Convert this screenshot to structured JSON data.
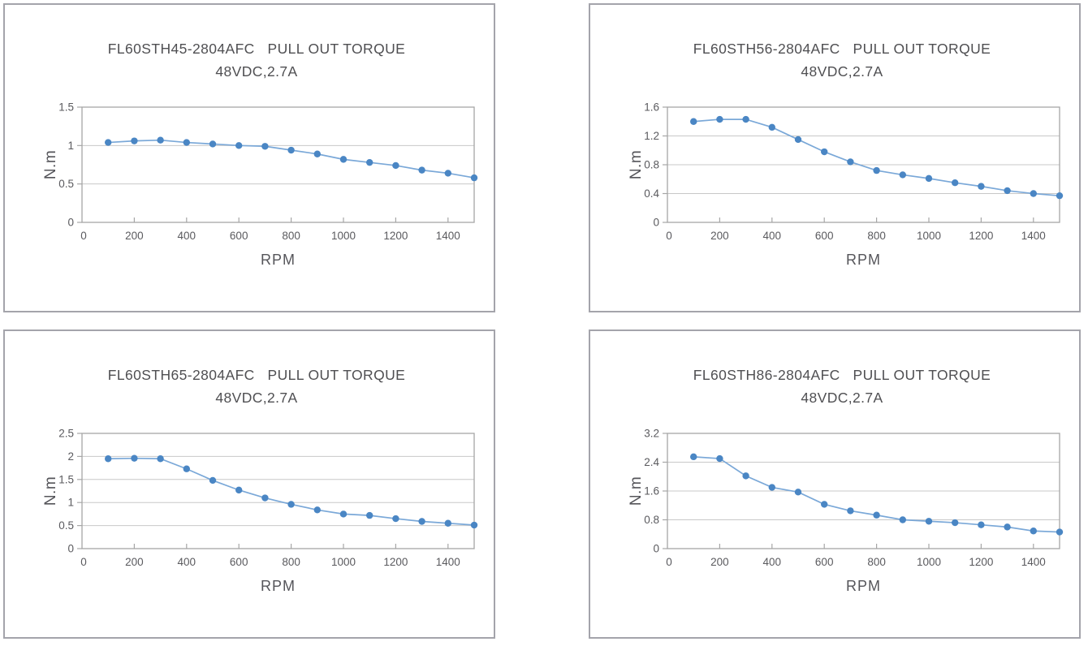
{
  "colors": {
    "line": "#7aa8d8",
    "marker": "#4a86c4",
    "grid": "#c8c8c8",
    "plot_border": "#a6a6a6",
    "tick": "#a6a6a6",
    "box_border": "#a4a4ab",
    "text": "#4f4f52"
  },
  "chart_data": [
    {
      "type": "line",
      "title_line1": "FL60STH45-2804AFC   PULL OUT TORQUE",
      "title_line2": "48VDC,2.7A",
      "xlabel": "RPM",
      "ylabel": "N.m",
      "legend_position": "none",
      "grid": true,
      "xlim": [
        0,
        1500
      ],
      "ylim": [
        0,
        1.5
      ],
      "xticks": [
        0,
        200,
        400,
        600,
        800,
        1000,
        1200,
        1400
      ],
      "xtick_labels": [
        "0",
        "200",
        "400",
        "600",
        "800",
        "1000",
        "1200",
        "1400"
      ],
      "yticks": [
        0,
        0.5,
        1,
        1.5
      ],
      "ytick_labels": [
        "0",
        "0.5",
        "1",
        "1.5"
      ],
      "x": [
        100,
        200,
        300,
        400,
        500,
        600,
        700,
        800,
        900,
        1000,
        1100,
        1200,
        1300,
        1400,
        1500
      ],
      "values": [
        1.04,
        1.06,
        1.07,
        1.04,
        1.02,
        1.0,
        0.99,
        0.94,
        0.89,
        0.82,
        0.78,
        0.74,
        0.68,
        0.64,
        0.58
      ]
    },
    {
      "type": "line",
      "title_line1": "FL60STH56-2804AFC   PULL OUT TORQUE",
      "title_line2": "48VDC,2.7A",
      "xlabel": "RPM",
      "ylabel": "N.m",
      "legend_position": "none",
      "grid": true,
      "xlim": [
        0,
        1500
      ],
      "ylim": [
        0,
        1.6
      ],
      "xticks": [
        0,
        200,
        400,
        600,
        800,
        1000,
        1200,
        1400
      ],
      "xtick_labels": [
        "0",
        "200",
        "400",
        "600",
        "800",
        "1000",
        "1200",
        "1400"
      ],
      "yticks": [
        0,
        0.4,
        0.8,
        1.2,
        1.6
      ],
      "ytick_labels": [
        "0",
        "0.4",
        "0.8",
        "1.2",
        "1.6"
      ],
      "x": [
        100,
        200,
        300,
        400,
        500,
        600,
        700,
        800,
        900,
        1000,
        1100,
        1200,
        1300,
        1400,
        1500
      ],
      "values": [
        1.4,
        1.43,
        1.43,
        1.32,
        1.15,
        0.98,
        0.84,
        0.72,
        0.66,
        0.61,
        0.55,
        0.5,
        0.44,
        0.4,
        0.37
      ]
    },
    {
      "type": "line",
      "title_line1": "FL60STH65-2804AFC   PULL OUT TORQUE",
      "title_line2": "48VDC,2.7A",
      "xlabel": "RPM",
      "ylabel": "N.m",
      "legend_position": "none",
      "grid": true,
      "xlim": [
        0,
        1500
      ],
      "ylim": [
        0,
        2.5
      ],
      "xticks": [
        0,
        200,
        400,
        600,
        800,
        1000,
        1200,
        1400
      ],
      "xtick_labels": [
        "0",
        "200",
        "400",
        "600",
        "800",
        "1000",
        "1200",
        "1400"
      ],
      "yticks": [
        0,
        0.5,
        1,
        1.5,
        2,
        2.5
      ],
      "ytick_labels": [
        "0",
        "0.5",
        "1",
        "1.5",
        "2",
        "2.5"
      ],
      "x": [
        100,
        200,
        300,
        400,
        500,
        600,
        700,
        800,
        900,
        1000,
        1100,
        1200,
        1300,
        1400,
        1500
      ],
      "values": [
        1.95,
        1.96,
        1.95,
        1.73,
        1.48,
        1.27,
        1.1,
        0.96,
        0.84,
        0.75,
        0.72,
        0.65,
        0.59,
        0.55,
        0.51
      ]
    },
    {
      "type": "line",
      "title_line1": "FL60STH86-2804AFC   PULL OUT TORQUE",
      "title_line2": "48VDC,2.7A",
      "xlabel": "RPM",
      "ylabel": "N.m",
      "legend_position": "none",
      "grid": true,
      "xlim": [
        0,
        1500
      ],
      "ylim": [
        0,
        3.2
      ],
      "xticks": [
        0,
        200,
        400,
        600,
        800,
        1000,
        1200,
        1400
      ],
      "xtick_labels": [
        "0",
        "200",
        "400",
        "600",
        "800",
        "1000",
        "1200",
        "1400"
      ],
      "yticks": [
        0,
        0.8,
        1.6,
        2.4,
        3.2
      ],
      "ytick_labels": [
        "0",
        "0.8",
        "1.6",
        "2.4",
        "3.2"
      ],
      "x": [
        100,
        200,
        300,
        400,
        500,
        600,
        700,
        800,
        900,
        1000,
        1100,
        1200,
        1300,
        1400,
        1500
      ],
      "values": [
        2.55,
        2.5,
        2.02,
        1.7,
        1.57,
        1.23,
        1.05,
        0.93,
        0.8,
        0.76,
        0.72,
        0.66,
        0.6,
        0.49,
        0.46
      ]
    }
  ]
}
